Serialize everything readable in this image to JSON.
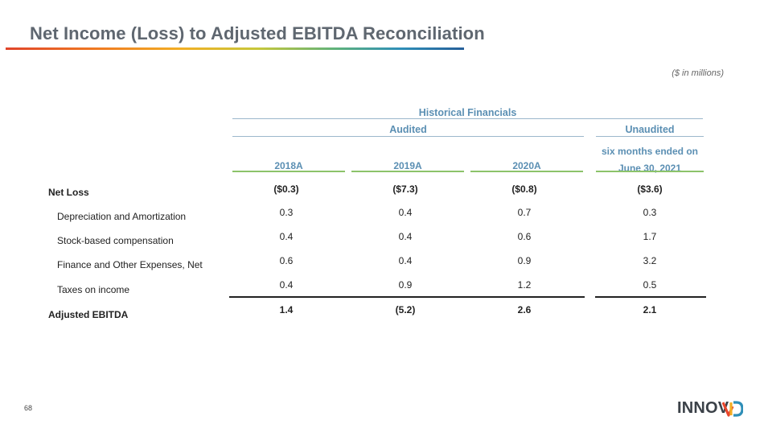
{
  "title": "Net Income (Loss) to Adjusted EBITDA Reconciliation",
  "units_note": "($ in millions)",
  "headers": {
    "historical": "Historical  Financials",
    "audited": "Audited",
    "unaudited": "Unaudited",
    "years": [
      "2018A",
      "2019A",
      "2020A"
    ],
    "period": "six months ended on June 30, 2021"
  },
  "rows": [
    {
      "label": "Net Loss",
      "values": [
        "($0.3)",
        "($7.3)",
        "($0.8)",
        "($3.6)"
      ]
    },
    {
      "label": "Depreciation and Amortization",
      "values": [
        "0.3",
        "0.4",
        "0.7",
        "0.3"
      ]
    },
    {
      "label": "Stock-based compensation",
      "values": [
        "0.4",
        "0.4",
        "0.6",
        "1.7"
      ]
    },
    {
      "label": "Finance and Other Expenses, Net",
      "values": [
        "0.6",
        "0.4",
        "0.9",
        "3.2"
      ]
    },
    {
      "label": "Taxes on income",
      "values": [
        "0.4",
        "0.9",
        "1.2",
        "0.5"
      ]
    },
    {
      "label": "Adjusted EBITDA",
      "values": [
        "1.4",
        "(5.2)",
        "2.6",
        "2.1"
      ]
    }
  ],
  "page_number": "68",
  "logo_text": "INNOV",
  "colors": {
    "header_blue": "#5b8fb3",
    "year_green": "#8cc36a",
    "title_gray": "#5f6770"
  }
}
